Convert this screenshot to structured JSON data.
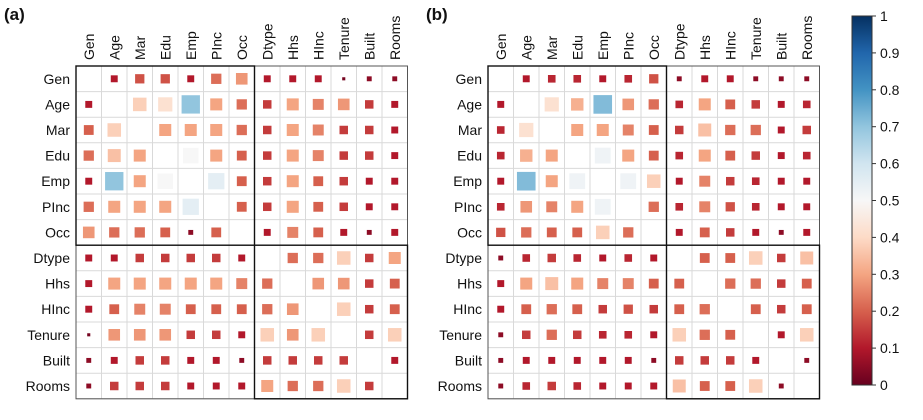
{
  "chart_data": [
    {
      "type": "heatmap",
      "panel_label": "(a)",
      "variables": [
        "Gen",
        "Age",
        "Mar",
        "Edu",
        "Emp",
        "PInc",
        "Occ",
        "Dtype",
        "Hhs",
        "HInc",
        "Tenure",
        "Built",
        "Rooms"
      ],
      "blocks": [
        [
          0,
          6
        ],
        [
          7,
          12
        ]
      ],
      "values": [
        [
          0.0,
          0.1,
          0.18,
          0.18,
          0.1,
          0.22,
          0.28,
          0.1,
          0.1,
          0.1,
          0.02,
          0.05,
          0.05
        ],
        [
          0.1,
          0.0,
          0.38,
          0.42,
          0.7,
          0.3,
          0.22,
          0.15,
          0.3,
          0.25,
          0.28,
          0.15,
          0.1
        ],
        [
          0.2,
          0.38,
          0.0,
          0.3,
          0.3,
          0.3,
          0.22,
          0.15,
          0.3,
          0.25,
          0.15,
          0.15,
          0.1
        ],
        [
          0.22,
          0.35,
          0.3,
          0.0,
          0.5,
          0.3,
          0.2,
          0.15,
          0.3,
          0.25,
          0.15,
          0.15,
          0.1
        ],
        [
          0.1,
          0.7,
          0.3,
          0.5,
          0.0,
          0.55,
          0.2,
          0.15,
          0.3,
          0.2,
          0.15,
          0.1,
          0.1
        ],
        [
          0.22,
          0.3,
          0.3,
          0.3,
          0.55,
          0.0,
          0.2,
          0.15,
          0.3,
          0.2,
          0.15,
          0.1,
          0.1
        ],
        [
          0.28,
          0.22,
          0.22,
          0.2,
          0.05,
          0.2,
          0.0,
          0.1,
          0.25,
          0.2,
          0.1,
          0.05,
          0.1
        ],
        [
          0.1,
          0.1,
          0.15,
          0.15,
          0.15,
          0.15,
          0.1,
          0.0,
          0.22,
          0.22,
          0.38,
          0.15,
          0.3
        ],
        [
          0.1,
          0.3,
          0.3,
          0.3,
          0.3,
          0.3,
          0.25,
          0.22,
          0.0,
          0.28,
          0.28,
          0.15,
          0.2
        ],
        [
          0.1,
          0.2,
          0.25,
          0.25,
          0.2,
          0.2,
          0.2,
          0.22,
          0.28,
          0.0,
          0.38,
          0.15,
          0.2
        ],
        [
          0.02,
          0.28,
          0.28,
          0.28,
          0.15,
          0.15,
          0.1,
          0.38,
          0.28,
          0.38,
          0.0,
          0.15,
          0.38
        ],
        [
          0.05,
          0.1,
          0.15,
          0.15,
          0.1,
          0.1,
          0.05,
          0.15,
          0.15,
          0.15,
          0.15,
          0.0,
          0.1
        ],
        [
          0.05,
          0.15,
          0.15,
          0.15,
          0.1,
          0.1,
          0.1,
          0.3,
          0.22,
          0.22,
          0.38,
          0.15,
          0.0
        ]
      ]
    },
    {
      "type": "heatmap",
      "panel_label": "(b)",
      "variables": [
        "Gen",
        "Age",
        "Mar",
        "Edu",
        "Emp",
        "PInc",
        "Occ",
        "Dtype",
        "Hhs",
        "HInc",
        "Tenure",
        "Built",
        "Rooms"
      ],
      "blocks": [
        [
          0,
          6
        ],
        [
          7,
          12
        ]
      ],
      "values": [
        [
          0.0,
          0.1,
          0.12,
          0.12,
          0.1,
          0.12,
          0.18,
          0.05,
          0.1,
          0.1,
          0.05,
          0.05,
          0.05
        ],
        [
          0.1,
          0.0,
          0.42,
          0.32,
          0.72,
          0.28,
          0.22,
          0.12,
          0.3,
          0.2,
          0.15,
          0.1,
          0.12
        ],
        [
          0.12,
          0.42,
          0.0,
          0.3,
          0.3,
          0.25,
          0.2,
          0.15,
          0.35,
          0.22,
          0.22,
          0.1,
          0.15
        ],
        [
          0.12,
          0.32,
          0.3,
          0.0,
          0.52,
          0.3,
          0.2,
          0.12,
          0.3,
          0.2,
          0.15,
          0.1,
          0.12
        ],
        [
          0.1,
          0.72,
          0.3,
          0.52,
          0.0,
          0.52,
          0.38,
          0.1,
          0.25,
          0.15,
          0.12,
          0.1,
          0.1
        ],
        [
          0.12,
          0.28,
          0.25,
          0.3,
          0.52,
          0.0,
          0.22,
          0.12,
          0.25,
          0.18,
          0.12,
          0.1,
          0.1
        ],
        [
          0.18,
          0.22,
          0.2,
          0.2,
          0.38,
          0.22,
          0.0,
          0.1,
          0.2,
          0.15,
          0.1,
          0.05,
          0.1
        ],
        [
          0.05,
          0.12,
          0.15,
          0.12,
          0.1,
          0.12,
          0.1,
          0.0,
          0.2,
          0.2,
          0.38,
          0.15,
          0.35
        ],
        [
          0.1,
          0.3,
          0.35,
          0.3,
          0.25,
          0.25,
          0.2,
          0.2,
          0.0,
          0.22,
          0.22,
          0.15,
          0.2
        ],
        [
          0.1,
          0.2,
          0.22,
          0.2,
          0.15,
          0.18,
          0.15,
          0.2,
          0.22,
          0.0,
          0.2,
          0.15,
          0.2
        ],
        [
          0.05,
          0.15,
          0.22,
          0.15,
          0.12,
          0.12,
          0.1,
          0.38,
          0.22,
          0.2,
          0.0,
          0.1,
          0.38
        ],
        [
          0.05,
          0.1,
          0.1,
          0.1,
          0.1,
          0.1,
          0.05,
          0.15,
          0.15,
          0.15,
          0.1,
          0.0,
          0.05
        ],
        [
          0.05,
          0.12,
          0.15,
          0.12,
          0.1,
          0.1,
          0.1,
          0.35,
          0.2,
          0.2,
          0.38,
          0.05,
          0.0
        ]
      ]
    }
  ],
  "colorbar": {
    "range": [
      0,
      1
    ],
    "ticks": [
      "0",
      "0.1",
      "0.2",
      "0.3",
      "0.4",
      "0.5",
      "0.6",
      "0.7",
      "0.8",
      "0.9",
      "1"
    ],
    "colors": [
      "#67001f",
      "#b2182b",
      "#d6604d",
      "#f4a582",
      "#fddbc7",
      "#f7f7f7",
      "#d1e5f0",
      "#92c5de",
      "#4393c3",
      "#2166ac",
      "#053061"
    ]
  }
}
